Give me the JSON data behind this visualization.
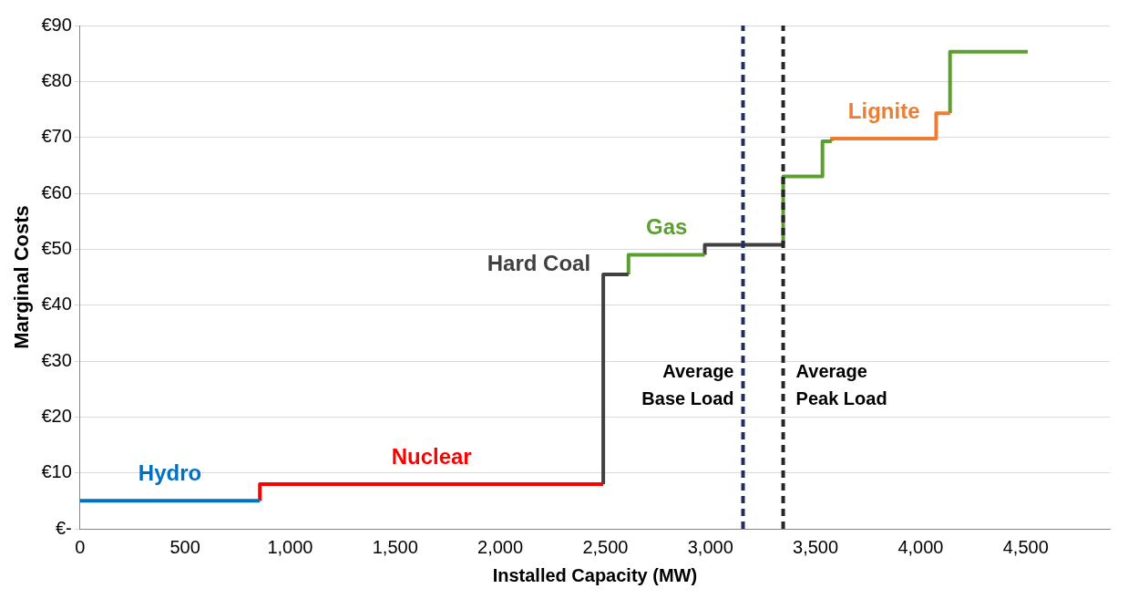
{
  "chart_data": {
    "type": "line",
    "xlabel": "Installed Capacity (MW)",
    "ylabel": "Marginal Costs",
    "xlim": [
      0,
      4900
    ],
    "ylim": [
      0,
      90
    ],
    "xticks": [
      0,
      500,
      {
        "value": 1000,
        "label": "1,000"
      },
      {
        "value": 1500,
        "label": "1,500"
      },
      {
        "value": 2000,
        "label": "2,000"
      },
      {
        "value": 2500,
        "label": "2,500"
      },
      {
        "value": 3000,
        "label": "3,000"
      },
      {
        "value": 3500,
        "label": "3,500"
      },
      {
        "value": 4000,
        "label": "4,000"
      },
      {
        "value": 4500,
        "label": "4,500"
      }
    ],
    "yticks": [
      {
        "value": 0,
        "label": "€-"
      },
      {
        "value": 10,
        "label": "€10"
      },
      {
        "value": 20,
        "label": "€20"
      },
      {
        "value": 30,
        "label": "€30"
      },
      {
        "value": 40,
        "label": "€40"
      },
      {
        "value": 50,
        "label": "€50"
      },
      {
        "value": 60,
        "label": "€60"
      },
      {
        "value": 70,
        "label": "€70"
      },
      {
        "value": 80,
        "label": "€80"
      },
      {
        "value": 90,
        "label": "€90"
      }
    ],
    "grid": "y",
    "legend": false,
    "marker": "none",
    "line_style": "solid",
    "series": [
      {
        "name": "Hydro",
        "color": "#0070c0",
        "x": [
          0,
          856
        ],
        "values": [
          5,
          5
        ]
      },
      {
        "name": "Nuclear",
        "color": "#ff0000",
        "x": [
          856,
          856,
          2490
        ],
        "values": [
          5,
          8,
          8
        ]
      },
      {
        "name": "Hard Coal",
        "color": "#404040",
        "x": [
          2490,
          2490,
          2610
        ],
        "values": [
          8,
          45.5,
          45.5
        ]
      },
      {
        "name": "Gas",
        "color": "#5b9f32",
        "x": [
          2610,
          2610,
          2973
        ],
        "values": [
          45.5,
          49,
          49
        ]
      },
      {
        "color": "#404040",
        "x": [
          2973,
          2973,
          3346
        ],
        "values": [
          49,
          50.8,
          50.8
        ]
      },
      {
        "color": "#5b9f32",
        "x": [
          3346,
          3346,
          3533,
          3533,
          3577
        ],
        "values": [
          50.8,
          63,
          63,
          69.3,
          69.3
        ]
      },
      {
        "name": "Lignite",
        "color": "#ed7d31",
        "x": [
          3577,
          3577,
          4074,
          4074,
          4140
        ],
        "values": [
          69.3,
          69.8,
          69.8,
          74.3,
          74.3
        ]
      },
      {
        "color": "#5b9f32",
        "x": [
          4140,
          4140,
          4510
        ],
        "values": [
          74.3,
          85.3,
          85.3
        ]
      }
    ],
    "ref_lines": [
      {
        "axis": "x",
        "value": 3155,
        "label": "Average\nBase Load",
        "color": "#1f2f5f",
        "line_style": "dashed"
      },
      {
        "axis": "x",
        "value": 3346,
        "label": "Average\nPeak Load",
        "color": "#262626",
        "line_style": "dashed"
      }
    ]
  }
}
